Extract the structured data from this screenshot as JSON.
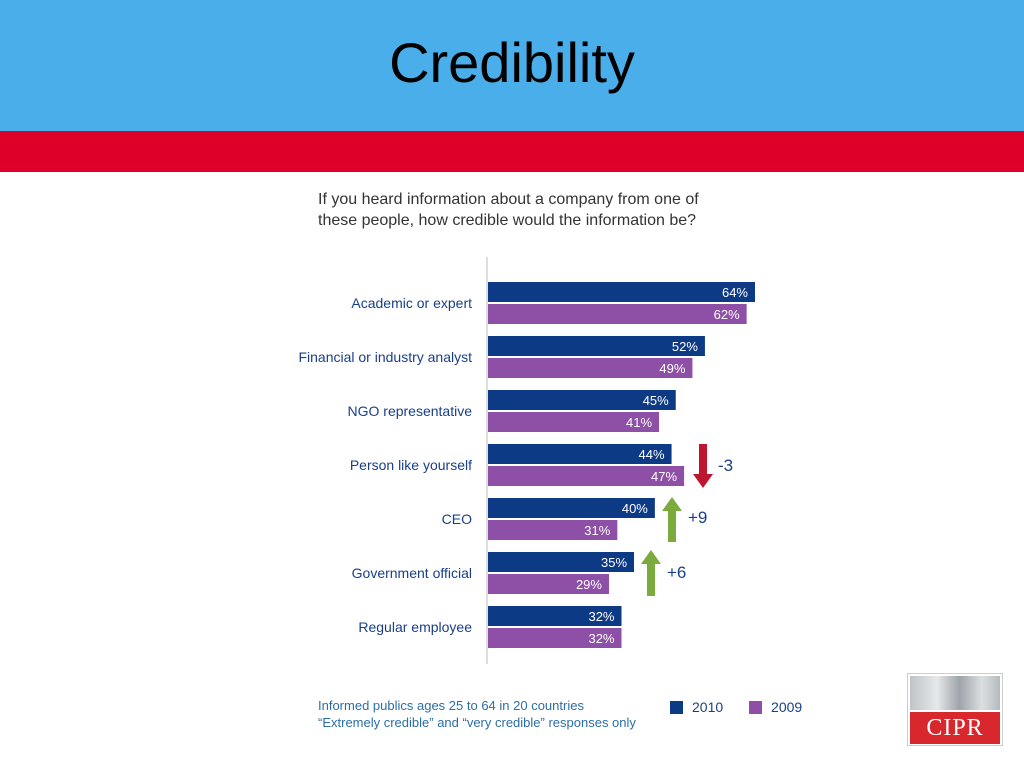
{
  "slide": {
    "title": "Credibility",
    "question_line1": "If you heard information about a company from one of",
    "question_line2": "these people, how credible would the information be?"
  },
  "chart_data": {
    "type": "bar",
    "orientation": "horizontal",
    "categories": [
      "Academic or expert",
      "Financial or industry analyst",
      "NGO representative",
      "Person like yourself",
      "CEO",
      "Government official",
      "Regular employee"
    ],
    "series": [
      {
        "name": "2010",
        "values": [
          64,
          52,
          45,
          44,
          40,
          35,
          32
        ],
        "labels": [
          "64%",
          "52%",
          "45%",
          "44%",
          "40%",
          "35%",
          "32%"
        ]
      },
      {
        "name": "2009",
        "values": [
          62,
          49,
          41,
          47,
          31,
          29,
          32
        ],
        "labels": [
          "62%",
          "49%",
          "41%",
          "47%",
          "31%",
          "29%",
          "32%"
        ]
      }
    ],
    "annotations": [
      {
        "category": "Person like yourself",
        "text": "-3",
        "direction": "down"
      },
      {
        "category": "CEO",
        "text": "+9",
        "direction": "up"
      },
      {
        "category": "Government official",
        "text": "+6",
        "direction": "up"
      }
    ],
    "xlim": [
      0,
      64
    ],
    "legend": "bottom-right",
    "grid": false
  },
  "footnote": {
    "line1": "Informed publics ages 25 to 64 in 20 countries",
    "line2": "“Extremely credible” and “very credible” responses only"
  },
  "legend": {
    "item1": "2010",
    "item2": "2009"
  },
  "logo": {
    "text": "CIPR"
  },
  "colors": {
    "header_blue": "#4aaeea",
    "band_red": "#df0029",
    "series_2010": "#0d3a85",
    "series_2009": "#8e4fa6",
    "arrow_up": "#7aab3c",
    "arrow_down": "#c0152f"
  }
}
